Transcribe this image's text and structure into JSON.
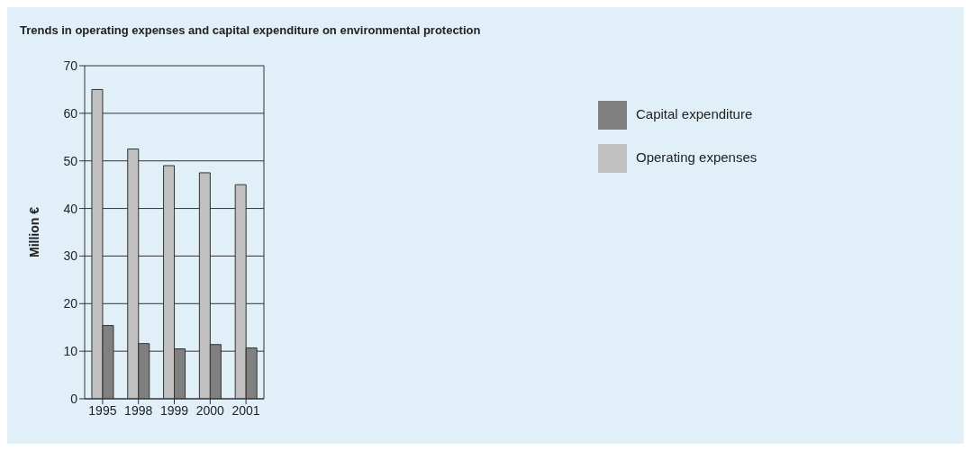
{
  "chart_data": {
    "type": "bar",
    "title": "Trends in operating expenses and capital expenditure on environmental protection",
    "ylabel": "Million €",
    "categories": [
      "1995",
      "1998",
      "1999",
      "2000",
      "2001"
    ],
    "series": [
      {
        "name": "Operating expenses",
        "color": "#c0c0c0",
        "values": [
          65,
          52.5,
          49,
          47.5,
          45
        ]
      },
      {
        "name": "Capital expenditure",
        "color": "#808080",
        "values": [
          15.4,
          11.6,
          10.5,
          11.4,
          10.7
        ]
      }
    ],
    "ylim": [
      0,
      70
    ],
    "yticks": [
      0,
      10,
      20,
      30,
      40,
      50,
      60,
      70
    ],
    "grid": "y",
    "legend": "top right"
  }
}
